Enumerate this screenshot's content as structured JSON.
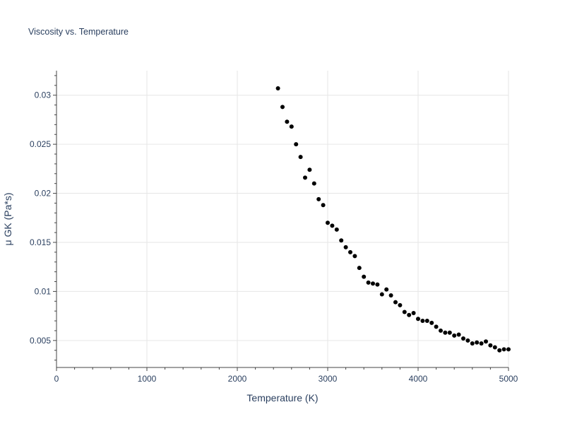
{
  "chart_data": {
    "type": "scatter",
    "title": "Viscosity vs. Temperature",
    "xlabel": "Temperature (K)",
    "ylabel": "μ GK (Pa*s)",
    "xlim": [
      0,
      5000
    ],
    "ylim": [
      0.00225,
      0.0325
    ],
    "xticks": [
      0,
      1000,
      2000,
      3000,
      4000,
      5000
    ],
    "xtick_labels": [
      "0",
      "1000",
      "2000",
      "3000",
      "4000",
      "5000"
    ],
    "yticks": [
      0.005,
      0.01,
      0.015,
      0.02,
      0.025,
      0.03
    ],
    "ytick_labels": [
      "0.005",
      "0.01",
      "0.015",
      "0.02",
      "0.025",
      "0.03"
    ],
    "grid": true,
    "marker_color": "#000000",
    "grid_color": "#e6e6e6",
    "series": [
      {
        "x": [
          2450,
          2500,
          2550,
          2600,
          2650,
          2700,
          2750,
          2800,
          2850,
          2900,
          2950,
          3000,
          3050,
          3100,
          3150,
          3200,
          3250,
          3300,
          3350,
          3400,
          3450,
          3500,
          3550,
          3600,
          3650,
          3700,
          3750,
          3800,
          3850,
          3900,
          3950,
          4000,
          4050,
          4100,
          4150,
          4200,
          4250,
          4300,
          4350,
          4400,
          4450,
          4500,
          4550,
          4600,
          4650,
          4700,
          4750,
          4800,
          4850,
          4900,
          4950,
          5000
        ],
        "y": [
          0.0307,
          0.0288,
          0.0273,
          0.0268,
          0.025,
          0.0237,
          0.0216,
          0.0224,
          0.021,
          0.0194,
          0.0188,
          0.017,
          0.0167,
          0.0163,
          0.0152,
          0.0145,
          0.014,
          0.0136,
          0.0124,
          0.0115,
          0.0109,
          0.0108,
          0.0107,
          0.0097,
          0.0102,
          0.0096,
          0.0089,
          0.0086,
          0.0079,
          0.0076,
          0.0078,
          0.0072,
          0.007,
          0.007,
          0.0068,
          0.0064,
          0.006,
          0.0058,
          0.0058,
          0.0055,
          0.0056,
          0.0052,
          0.005,
          0.0047,
          0.0048,
          0.0047,
          0.0049,
          0.0045,
          0.0043,
          0.004,
          0.0041,
          0.0041
        ]
      }
    ]
  }
}
